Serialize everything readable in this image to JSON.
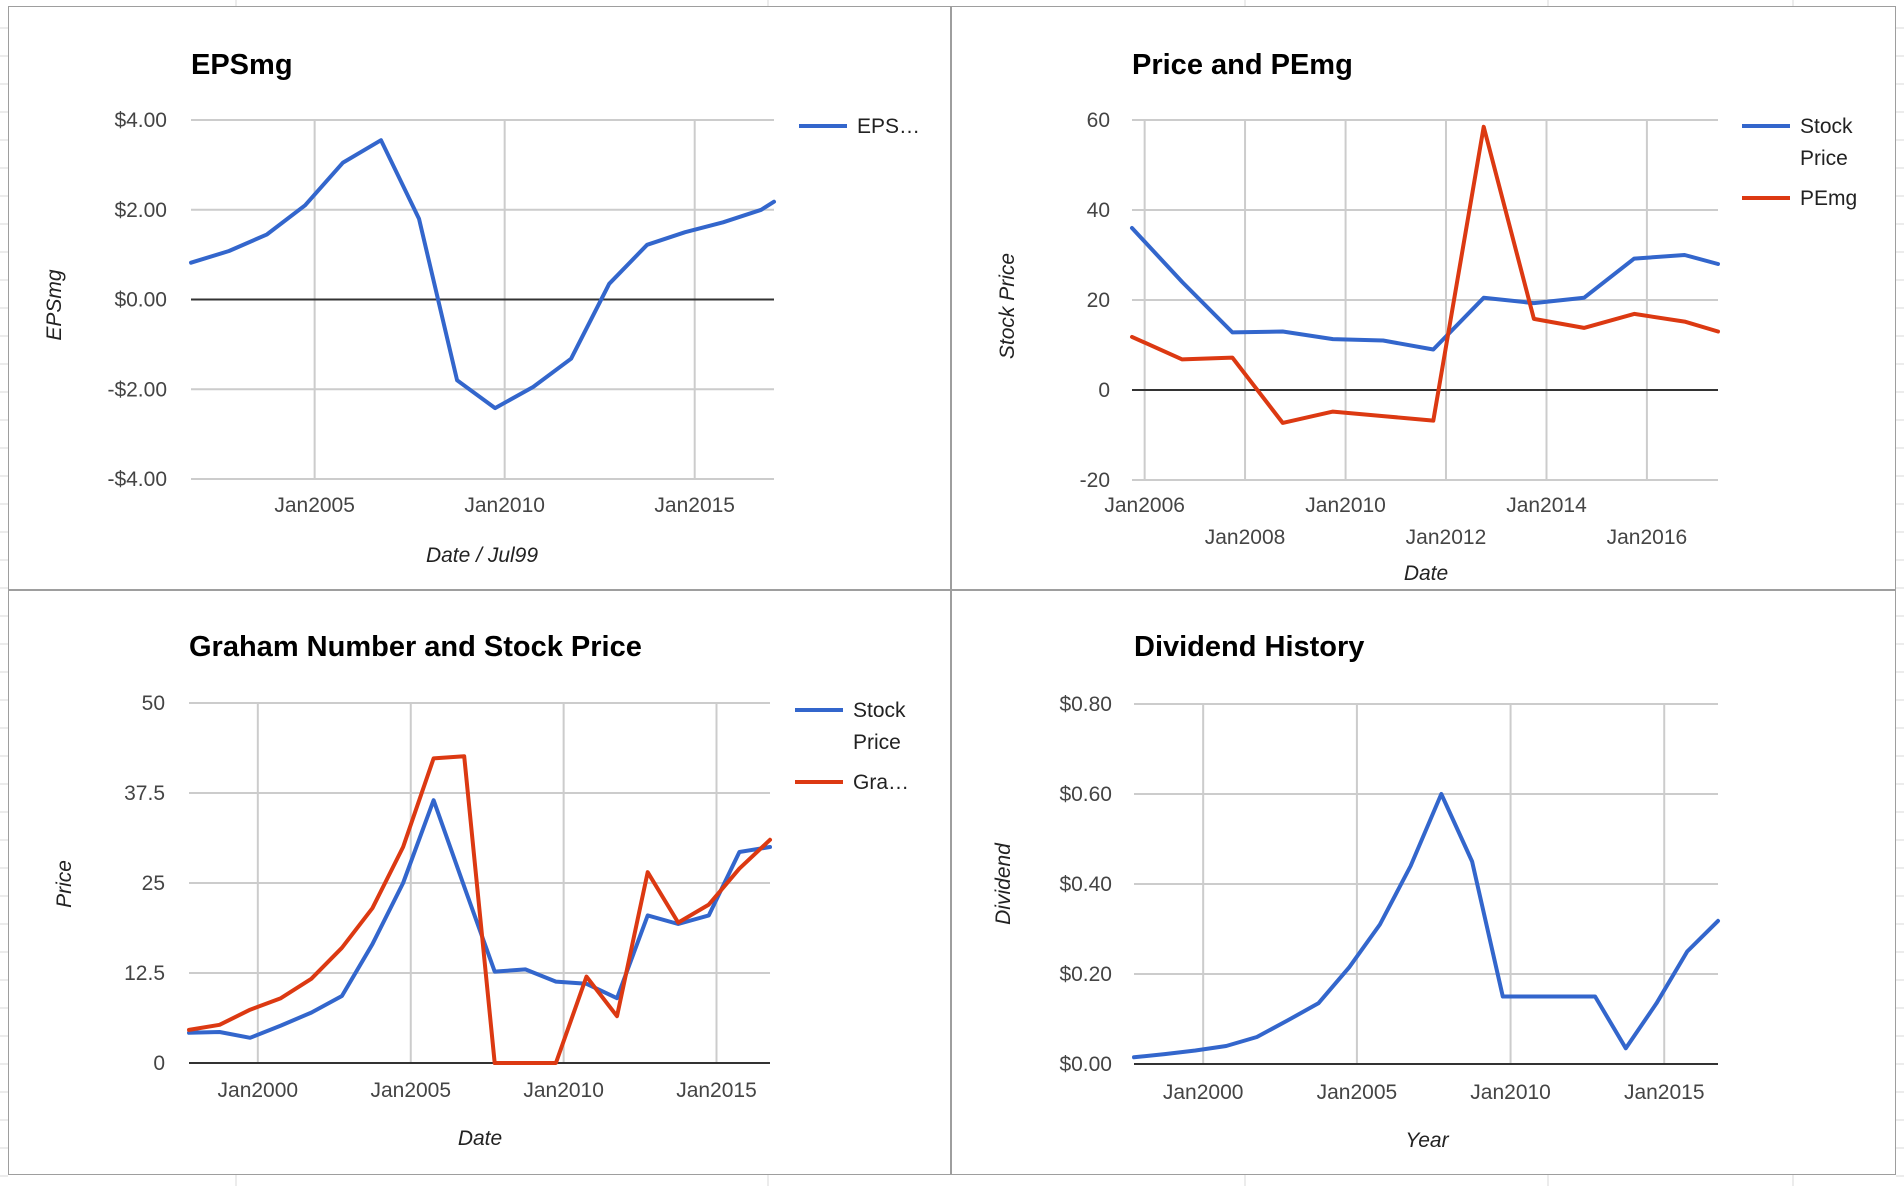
{
  "colors": {
    "blue": "#3366cc",
    "red": "#dc3912",
    "grid": "#cccccc",
    "zero_line": "#333333",
    "sheet_grid": "#d9d9d9"
  },
  "chart_data": [
    {
      "type": "line",
      "title": "EPSmg",
      "xlabel": "Date / Jul99",
      "ylabel": "EPSmg",
      "x_ticks": [
        {
          "date": "2005-01-01",
          "label": "Jan2005"
        },
        {
          "date": "2010-01-01",
          "label": "Jan2010"
        },
        {
          "date": "2015-01-01",
          "label": "Jan2015"
        }
      ],
      "x_range": [
        "2001-10-01",
        "2017-02-01"
      ],
      "y_ticks": [
        {
          "value": 4,
          "label": "$4.00"
        },
        {
          "value": 2,
          "label": "$2.00"
        },
        {
          "value": 0,
          "label": "$0.00"
        },
        {
          "value": -2,
          "label": "-$2.00"
        },
        {
          "value": -4,
          "label": "-$4.00"
        }
      ],
      "ylim": [
        -4,
        4
      ],
      "zero_line": 0,
      "legend_position": "right",
      "series": [
        {
          "name": "EPS…",
          "color": "#3366cc",
          "points": [
            {
              "x": "2001-10-01",
              "y": 0.82
            },
            {
              "x": "2002-10-01",
              "y": 1.08
            },
            {
              "x": "2003-10-01",
              "y": 1.45
            },
            {
              "x": "2004-10-01",
              "y": 2.1
            },
            {
              "x": "2005-10-01",
              "y": 3.05
            },
            {
              "x": "2006-10-01",
              "y": 3.55
            },
            {
              "x": "2007-10-01",
              "y": 1.8
            },
            {
              "x": "2008-10-01",
              "y": -1.8
            },
            {
              "x": "2009-10-01",
              "y": -2.42
            },
            {
              "x": "2010-10-01",
              "y": -1.95
            },
            {
              "x": "2011-10-01",
              "y": -1.32
            },
            {
              "x": "2012-10-01",
              "y": 0.35
            },
            {
              "x": "2013-10-01",
              "y": 1.22
            },
            {
              "x": "2014-10-01",
              "y": 1.5
            },
            {
              "x": "2015-10-01",
              "y": 1.72
            },
            {
              "x": "2016-10-01",
              "y": 2.0
            },
            {
              "x": "2017-02-01",
              "y": 2.18
            }
          ]
        }
      ]
    },
    {
      "type": "line",
      "title": "Price and PEmg",
      "xlabel": "Date",
      "ylabel": "Stock Price",
      "x_ticks": [
        {
          "date": "2006-01-01",
          "label": "Jan2006",
          "row": 0
        },
        {
          "date": "2008-01-01",
          "label": "Jan2008",
          "row": 1
        },
        {
          "date": "2010-01-01",
          "label": "Jan2010",
          "row": 0
        },
        {
          "date": "2012-01-01",
          "label": "Jan2012",
          "row": 1
        },
        {
          "date": "2014-01-01",
          "label": "Jan2014",
          "row": 0
        },
        {
          "date": "2016-01-01",
          "label": "Jan2016",
          "row": 1
        }
      ],
      "x_range": [
        "2005-10-01",
        "2017-06-01"
      ],
      "y_ticks": [
        {
          "value": 60,
          "label": "60"
        },
        {
          "value": 40,
          "label": "40"
        },
        {
          "value": 20,
          "label": "20"
        },
        {
          "value": 0,
          "label": "0"
        },
        {
          "value": -20,
          "label": "-20"
        }
      ],
      "ylim": [
        -20,
        60
      ],
      "zero_line": 0,
      "legend_position": "right",
      "series": [
        {
          "name": "Stock Price",
          "name_lines": [
            "Stock",
            "Price"
          ],
          "color": "#3366cc",
          "points": [
            {
              "x": "2005-10-01",
              "y": 36
            },
            {
              "x": "2006-10-01",
              "y": 24
            },
            {
              "x": "2007-10-01",
              "y": 12.8
            },
            {
              "x": "2008-10-01",
              "y": 13.0
            },
            {
              "x": "2009-10-01",
              "y": 11.3
            },
            {
              "x": "2010-10-01",
              "y": 11.0
            },
            {
              "x": "2011-10-01",
              "y": 9.0
            },
            {
              "x": "2012-10-01",
              "y": 20.5
            },
            {
              "x": "2013-10-01",
              "y": 19.3
            },
            {
              "x": "2014-10-01",
              "y": 20.5
            },
            {
              "x": "2015-10-01",
              "y": 29.2
            },
            {
              "x": "2016-10-01",
              "y": 30.0
            },
            {
              "x": "2017-06-01",
              "y": 28.0
            }
          ]
        },
        {
          "name": "PEmg",
          "name_lines": [
            "PEmg"
          ],
          "color": "#dc3912",
          "points": [
            {
              "x": "2005-10-01",
              "y": 11.8
            },
            {
              "x": "2006-10-01",
              "y": 6.8
            },
            {
              "x": "2007-10-01",
              "y": 7.2
            },
            {
              "x": "2008-10-01",
              "y": -7.3
            },
            {
              "x": "2009-10-01",
              "y": -4.8
            },
            {
              "x": "2010-10-01",
              "y": -5.8
            },
            {
              "x": "2011-10-01",
              "y": -6.8
            },
            {
              "x": "2012-10-01",
              "y": 58.5
            },
            {
              "x": "2013-10-01",
              "y": 15.8
            },
            {
              "x": "2014-10-01",
              "y": 13.8
            },
            {
              "x": "2015-10-01",
              "y": 16.9
            },
            {
              "x": "2016-10-01",
              "y": 15.2
            },
            {
              "x": "2017-06-01",
              "y": 13.0
            }
          ]
        }
      ]
    },
    {
      "type": "line",
      "title": "Graham Number and Stock Price",
      "xlabel": "Date",
      "ylabel": "Price",
      "x_ticks": [
        {
          "date": "2000-01-01",
          "label": "Jan2000"
        },
        {
          "date": "2005-01-01",
          "label": "Jan2005"
        },
        {
          "date": "2010-01-01",
          "label": "Jan2010"
        },
        {
          "date": "2015-01-01",
          "label": "Jan2015"
        }
      ],
      "x_range": [
        "1997-10-01",
        "2016-10-01"
      ],
      "y_ticks": [
        {
          "value": 50,
          "label": "50"
        },
        {
          "value": 37.5,
          "label": "37.5"
        },
        {
          "value": 25,
          "label": "25"
        },
        {
          "value": 12.5,
          "label": "12.5"
        },
        {
          "value": 0,
          "label": "0"
        }
      ],
      "ylim": [
        0,
        50
      ],
      "zero_line": 0,
      "legend_position": "right",
      "series": [
        {
          "name": "Stock Price",
          "name_lines": [
            "Stock",
            "Price"
          ],
          "color": "#3366cc",
          "points": [
            {
              "x": "1997-10-01",
              "y": 4.2
            },
            {
              "x": "1998-10-01",
              "y": 4.3
            },
            {
              "x": "1999-10-01",
              "y": 3.5
            },
            {
              "x": "2000-10-01",
              "y": 5.2
            },
            {
              "x": "2001-10-01",
              "y": 7.0
            },
            {
              "x": "2002-10-01",
              "y": 9.3
            },
            {
              "x": "2003-10-01",
              "y": 16.5
            },
            {
              "x": "2004-10-01",
              "y": 25.0
            },
            {
              "x": "2005-10-01",
              "y": 36.5
            },
            {
              "x": "2006-10-01",
              "y": 24.5
            },
            {
              "x": "2007-10-01",
              "y": 12.7
            },
            {
              "x": "2008-10-01",
              "y": 13.0
            },
            {
              "x": "2009-10-01",
              "y": 11.3
            },
            {
              "x": "2010-10-01",
              "y": 11.0
            },
            {
              "x": "2011-10-01",
              "y": 9.0
            },
            {
              "x": "2012-10-01",
              "y": 20.5
            },
            {
              "x": "2013-10-01",
              "y": 19.3
            },
            {
              "x": "2014-10-01",
              "y": 20.5
            },
            {
              "x": "2015-10-01",
              "y": 29.3
            },
            {
              "x": "2016-10-01",
              "y": 30.0
            }
          ]
        },
        {
          "name": "Gra…",
          "name_lines": [
            "Gra…"
          ],
          "color": "#dc3912",
          "points": [
            {
              "x": "1997-10-01",
              "y": 4.6
            },
            {
              "x": "1998-10-01",
              "y": 5.3
            },
            {
              "x": "1999-10-01",
              "y": 7.4
            },
            {
              "x": "2000-10-01",
              "y": 9.0
            },
            {
              "x": "2001-10-01",
              "y": 11.7
            },
            {
              "x": "2002-10-01",
              "y": 16.0
            },
            {
              "x": "2003-10-01",
              "y": 21.5
            },
            {
              "x": "2004-10-01",
              "y": 30.0
            },
            {
              "x": "2005-10-01",
              "y": 42.3
            },
            {
              "x": "2006-10-01",
              "y": 42.6
            },
            {
              "x": "2007-10-01",
              "y": 0
            },
            {
              "x": "2008-10-01",
              "y": 0
            },
            {
              "x": "2009-10-01",
              "y": 0
            },
            {
              "x": "2010-10-01",
              "y": 12.0
            },
            {
              "x": "2011-10-01",
              "y": 6.5
            },
            {
              "x": "2012-10-01",
              "y": 26.5
            },
            {
              "x": "2013-10-01",
              "y": 19.5
            },
            {
              "x": "2014-10-01",
              "y": 22.0
            },
            {
              "x": "2015-10-01",
              "y": 27.0
            },
            {
              "x": "2016-10-01",
              "y": 31.0
            }
          ]
        }
      ]
    },
    {
      "type": "line",
      "title": "Dividend History",
      "xlabel": "Year",
      "ylabel": "Dividend",
      "x_ticks": [
        {
          "date": "2000-01-01",
          "label": "Jan2000"
        },
        {
          "date": "2005-01-01",
          "label": "Jan2005"
        },
        {
          "date": "2010-01-01",
          "label": "Jan2010"
        },
        {
          "date": "2015-01-01",
          "label": "Jan2015"
        }
      ],
      "x_range": [
        "1997-10-01",
        "2016-10-01"
      ],
      "y_ticks": [
        {
          "value": 0.8,
          "label": "$0.80"
        },
        {
          "value": 0.6,
          "label": "$0.60"
        },
        {
          "value": 0.4,
          "label": "$0.40"
        },
        {
          "value": 0.2,
          "label": "$0.20"
        },
        {
          "value": 0,
          "label": "$0.00"
        }
      ],
      "ylim": [
        0,
        0.8
      ],
      "zero_line": 0,
      "legend_position": "none",
      "series": [
        {
          "name": "",
          "color": "#3366cc",
          "points": [
            {
              "x": "1997-10-01",
              "y": 0.015
            },
            {
              "x": "1998-10-01",
              "y": 0.022
            },
            {
              "x": "1999-10-01",
              "y": 0.03
            },
            {
              "x": "2000-10-01",
              "y": 0.04
            },
            {
              "x": "2001-10-01",
              "y": 0.06
            },
            {
              "x": "2002-10-01",
              "y": 0.097
            },
            {
              "x": "2003-10-01",
              "y": 0.135
            },
            {
              "x": "2004-10-01",
              "y": 0.215
            },
            {
              "x": "2005-10-01",
              "y": 0.31
            },
            {
              "x": "2006-10-01",
              "y": 0.44
            },
            {
              "x": "2007-10-01",
              "y": 0.6
            },
            {
              "x": "2008-10-01",
              "y": 0.45
            },
            {
              "x": "2009-10-01",
              "y": 0.15
            },
            {
              "x": "2010-10-01",
              "y": 0.15
            },
            {
              "x": "2011-10-01",
              "y": 0.15
            },
            {
              "x": "2012-10-01",
              "y": 0.15
            },
            {
              "x": "2013-10-01",
              "y": 0.035
            },
            {
              "x": "2014-10-01",
              "y": 0.135
            },
            {
              "x": "2015-10-01",
              "y": 0.25
            },
            {
              "x": "2016-10-01",
              "y": 0.318
            }
          ]
        }
      ]
    }
  ]
}
